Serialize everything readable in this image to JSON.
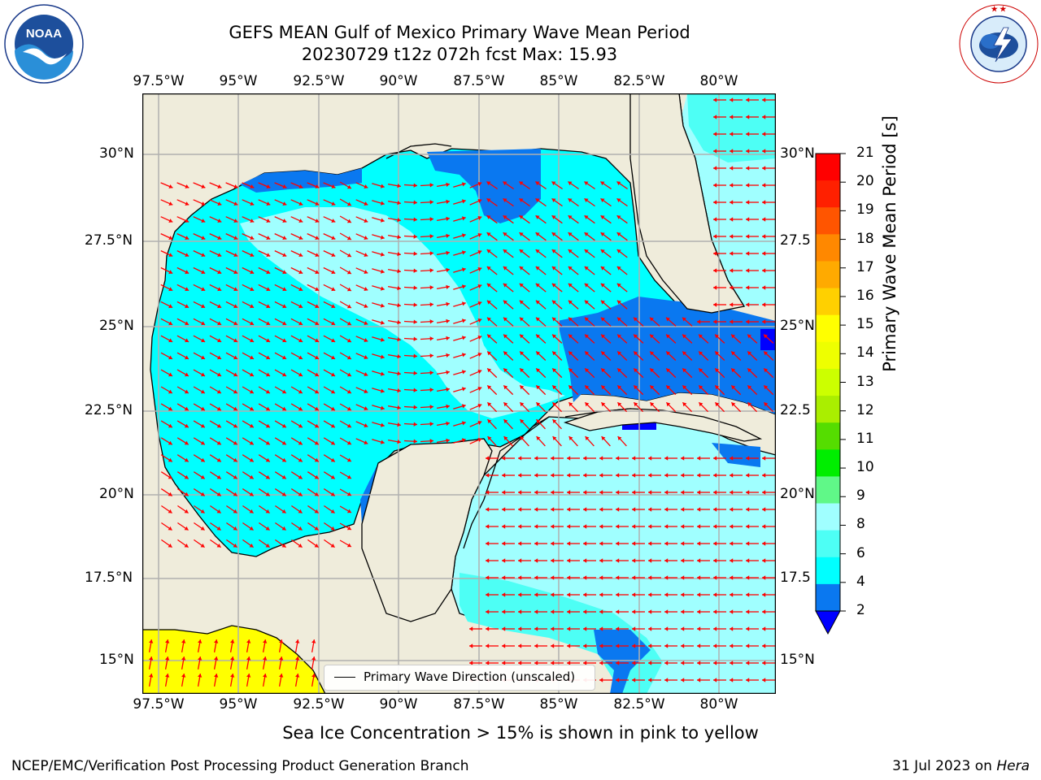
{
  "title": {
    "line1": "GEFS MEAN Gulf of Mexico Primary Wave Mean Period",
    "line2": "20230729 t12z 072h fcst   Max: 15.93"
  },
  "logos": {
    "noaa_text": "NOAA",
    "noaa_ring": "NATIONAL OCEANIC AND ATMOSPHERIC ADMINISTRATION · U.S. DEPARTMENT OF COMMERCE",
    "nws_ring": "NATIONAL WEATHER SERVICE"
  },
  "map": {
    "lon_labels": [
      "97.5°W",
      "95°W",
      "92.5°W",
      "90°W",
      "87.5°W",
      "85°W",
      "82.5°W",
      "80°W"
    ],
    "lat_labels_left": [
      "30°N",
      "27.5°N",
      "25°N",
      "22.5°N",
      "20°N",
      "17.5°N",
      "15°N"
    ],
    "lat_labels_right": [
      "30°N",
      "27.5",
      "25°N",
      "22.5",
      "20°N",
      "17.5",
      "15°N"
    ],
    "land_color": "#efecdb",
    "arrow_color": "#ff0000",
    "grid_color": "#b0b0b0",
    "sea_ice_color": "#ffff00",
    "legend": "Primary Wave Direction (unscaled)"
  },
  "colorbar": {
    "label": "Primary Wave Mean Period [s]",
    "ticks": [
      "2",
      "4",
      "6",
      "8",
      "9",
      "10",
      "11",
      "12",
      "13",
      "14",
      "15",
      "16",
      "17",
      "18",
      "19",
      "20",
      "21"
    ],
    "colors": [
      "#0000ff",
      "#0a78f0",
      "#00ffff",
      "#4dfff5",
      "#a0ffff",
      "#60f888",
      "#00ee00",
      "#55dd00",
      "#aaee00",
      "#ccff00",
      "#eeff00",
      "#ffff00",
      "#ffd000",
      "#ffaa00",
      "#ff8800",
      "#ff5500",
      "#ff2000",
      "#ff0000"
    ],
    "extend_color": "#0000ff"
  },
  "note": "Sea Ice Concentration > 15% is shown in pink to yellow",
  "footer": {
    "left": "NCEP/EMC/Verification Post Processing Product Generation Branch",
    "right_date": "31 Jul 2023 on ",
    "right_host": "Hera"
  }
}
